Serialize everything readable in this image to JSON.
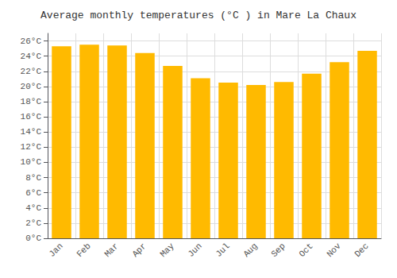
{
  "chart_data": {
    "type": "bar",
    "title": "Average monthly temperatures (°C ) in Mare La Chaux",
    "categories": [
      "Jan",
      "Feb",
      "Mar",
      "Apr",
      "May",
      "Jun",
      "Jul",
      "Aug",
      "Sep",
      "Oct",
      "Nov",
      "Dec"
    ],
    "values": [
      25.3,
      25.5,
      25.4,
      24.4,
      22.7,
      21.1,
      20.5,
      20.2,
      20.6,
      21.7,
      23.2,
      24.7
    ],
    "color": "#FFBA00",
    "ylim": [
      0,
      27
    ],
    "yticks": [
      {
        "value": 0,
        "label": "0°C"
      },
      {
        "value": 2,
        "label": "2°C"
      },
      {
        "value": 4,
        "label": "4°C"
      },
      {
        "value": 6,
        "label": "6°C"
      },
      {
        "value": 8,
        "label": "8°C"
      },
      {
        "value": 10,
        "label": "10°C"
      },
      {
        "value": 12,
        "label": "12°C"
      },
      {
        "value": 14,
        "label": "14°C"
      },
      {
        "value": 16,
        "label": "16°C"
      },
      {
        "value": 18,
        "label": "18°C"
      },
      {
        "value": 20,
        "label": "20°C"
      },
      {
        "value": 22,
        "label": "22°C"
      },
      {
        "value": 24,
        "label": "24°C"
      },
      {
        "value": 26,
        "label": "26°C"
      }
    ],
    "grid": true
  }
}
